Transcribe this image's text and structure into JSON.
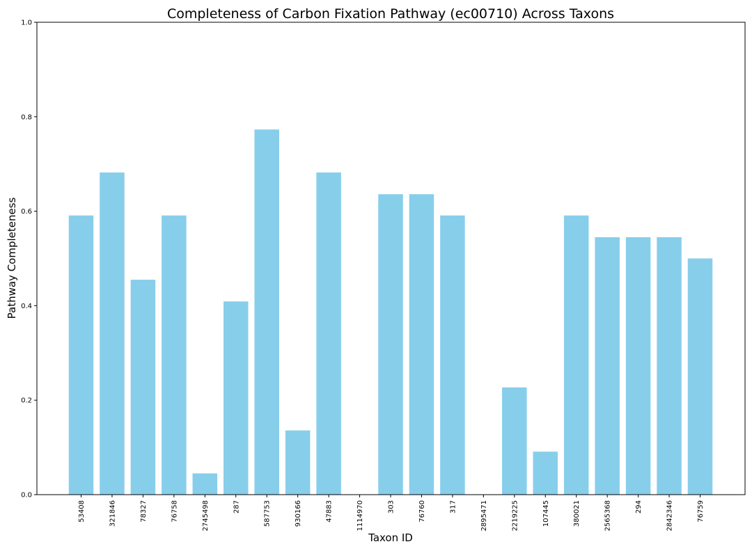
{
  "chart_data": {
    "type": "bar",
    "title": "Completeness of Carbon Fixation Pathway (ec00710) Across Taxons",
    "xlabel": "Taxon ID",
    "ylabel": "Pathway Completeness",
    "ylim": [
      0,
      1.0
    ],
    "yticks": [
      "0.0",
      "0.2",
      "0.4",
      "0.6",
      "0.8",
      "1.0"
    ],
    "categories": [
      "53408",
      "321846",
      "78327",
      "76758",
      "2745498",
      "287",
      "587753",
      "930166",
      "47883",
      "1114970",
      "303",
      "76760",
      "317",
      "2895471",
      "2219225",
      "107445",
      "380021",
      "2565368",
      "294",
      "2842346",
      "76759"
    ],
    "values": [
      0.591,
      0.682,
      0.455,
      0.591,
      0.045,
      0.409,
      0.773,
      0.136,
      0.682,
      0.0,
      0.636,
      0.636,
      0.591,
      0.0,
      0.227,
      0.091,
      0.591,
      0.545,
      0.545,
      0.545,
      0.5
    ],
    "bar_color": "#87ceeb",
    "grid": false,
    "legend": false
  }
}
